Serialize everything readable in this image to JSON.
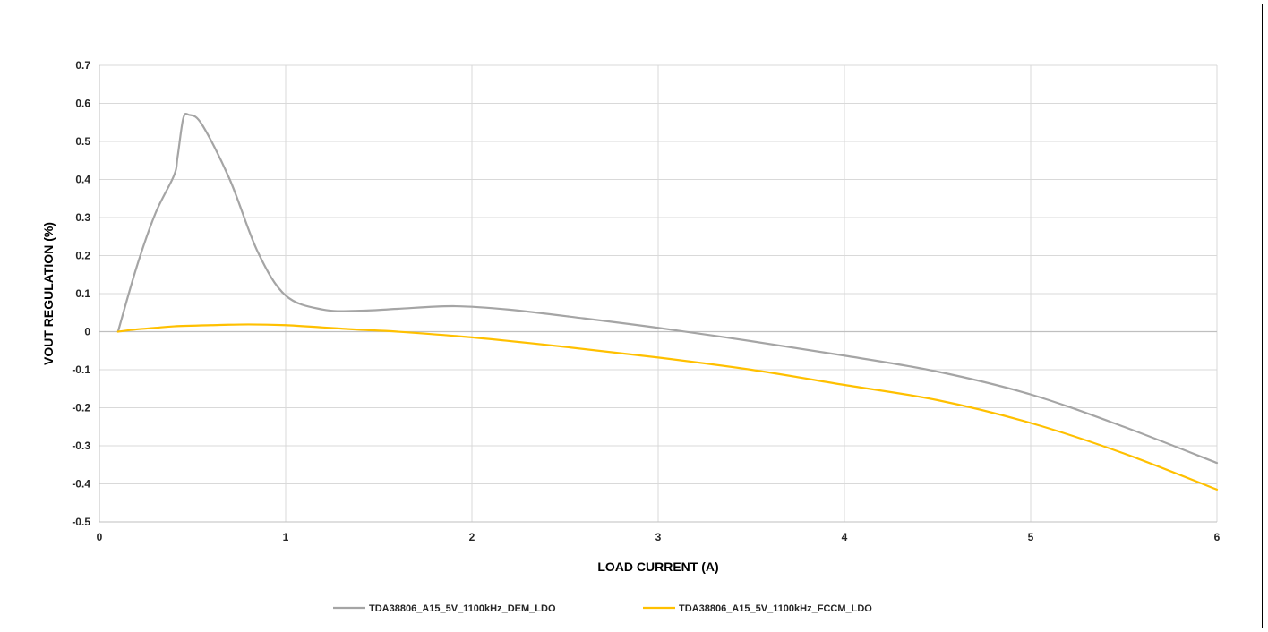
{
  "chart_data": {
    "type": "line",
    "title": "",
    "xlabel": "LOAD CURRENT (A)",
    "ylabel": "VOUT REGULATION (%)",
    "xlim": [
      0,
      6
    ],
    "ylim": [
      -0.5,
      0.7
    ],
    "x_ticks": [
      "0",
      "1",
      "2",
      "3",
      "4",
      "5",
      "6"
    ],
    "y_ticks": [
      "0.7",
      "0.6",
      "0.5",
      "0.4",
      "0.3",
      "0.2",
      "0.1",
      "0",
      "-0.1",
      "-0.2",
      "-0.3",
      "-0.4",
      "-0.5"
    ],
    "grid": true,
    "legend_position": "bottom",
    "series": [
      {
        "name": "TDA38806_A15_5V_1100kHz_DEM_LDO",
        "color": "#a5a5a5",
        "x": [
          0.1,
          0.2,
          0.3,
          0.4,
          0.42,
          0.45,
          0.48,
          0.55,
          0.7,
          0.85,
          1.0,
          1.2,
          1.4,
          1.6,
          1.9,
          2.2,
          2.6,
          3.0,
          3.5,
          4.0,
          4.5,
          5.0,
          5.5,
          6.0
        ],
        "y": [
          0.0,
          0.17,
          0.31,
          0.41,
          0.46,
          0.56,
          0.57,
          0.545,
          0.4,
          0.21,
          0.095,
          0.058,
          0.055,
          0.06,
          0.067,
          0.058,
          0.035,
          0.01,
          -0.025,
          -0.063,
          -0.105,
          -0.165,
          -0.25,
          -0.345
        ]
      },
      {
        "name": "TDA38806_A15_5V_1100kHz_FCCM_LDO",
        "color": "#ffc000",
        "x": [
          0.1,
          0.2,
          0.3,
          0.4,
          0.6,
          0.8,
          1.0,
          1.2,
          1.4,
          1.6,
          2.0,
          2.5,
          3.0,
          3.5,
          4.0,
          4.5,
          5.0,
          5.5,
          6.0
        ],
        "y": [
          0.0,
          0.006,
          0.01,
          0.014,
          0.017,
          0.019,
          0.017,
          0.011,
          0.005,
          0.0,
          -0.015,
          -0.04,
          -0.068,
          -0.1,
          -0.14,
          -0.18,
          -0.24,
          -0.32,
          -0.415
        ]
      }
    ]
  }
}
